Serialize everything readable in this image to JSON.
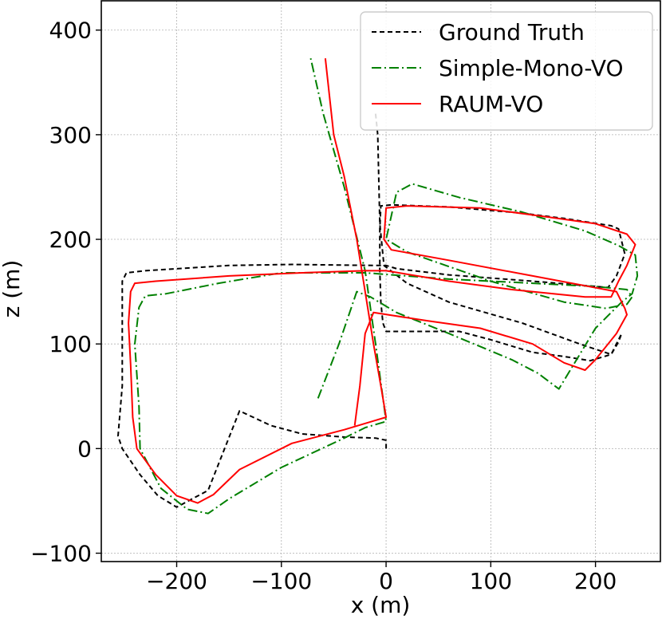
{
  "chart_data": {
    "type": "line",
    "title": "",
    "xlabel": "x (m)",
    "ylabel": "z (m)",
    "xlim": [
      -272,
      262
    ],
    "ylim": [
      -108,
      428
    ],
    "xticks": [
      -200,
      -100,
      0,
      100,
      200
    ],
    "yticks": [
      -100,
      0,
      100,
      200,
      300,
      400
    ],
    "grid": true,
    "legend_position": "top-right",
    "series": [
      {
        "name": "Ground Truth",
        "color": "#000000",
        "style": "dashed",
        "points": [
          [
            0,
            0
          ],
          [
            0,
            8
          ],
          [
            -10,
            10
          ],
          [
            -40,
            11
          ],
          [
            -80,
            14
          ],
          [
            -110,
            22
          ],
          [
            -140,
            36
          ],
          [
            -170,
            -40
          ],
          [
            -200,
            -56
          ],
          [
            -218,
            -45
          ],
          [
            -235,
            -25
          ],
          [
            -252,
            0
          ],
          [
            -256,
            12
          ],
          [
            -252,
            60
          ],
          [
            -252,
            100
          ],
          [
            -252,
            160
          ],
          [
            -248,
            168
          ],
          [
            -230,
            170
          ],
          [
            -150,
            175
          ],
          [
            -90,
            176
          ],
          [
            -10,
            175
          ],
          [
            0,
            175
          ],
          [
            10,
            172
          ],
          [
            60,
            166
          ],
          [
            140,
            160
          ],
          [
            200,
            155
          ],
          [
            212,
            154
          ],
          [
            220,
            165
          ],
          [
            228,
            186
          ],
          [
            222,
            210
          ],
          [
            215,
            213
          ],
          [
            170,
            220
          ],
          [
            130,
            225
          ],
          [
            60,
            231
          ],
          [
            5,
            233
          ],
          [
            -5,
            232
          ],
          [
            -6,
            210
          ],
          [
            -6,
            170
          ],
          [
            -5,
            140
          ],
          [
            -3,
            120
          ],
          [
            0,
            112
          ],
          [
            20,
            112
          ],
          [
            70,
            112
          ],
          [
            100,
            104
          ],
          [
            140,
            92
          ],
          [
            170,
            88
          ],
          [
            195,
            84
          ],
          [
            215,
            90
          ],
          [
            222,
            102
          ],
          [
            225,
            110
          ],
          [
            215,
            90
          ],
          [
            185,
            100
          ],
          [
            130,
            120
          ],
          [
            60,
            140
          ],
          [
            20,
            158
          ],
          [
            -2,
            175
          ],
          [
            -6,
            215
          ],
          [
            -8,
            300
          ],
          [
            -10,
            320
          ]
        ]
      },
      {
        "name": "Simple-Mono-VO",
        "color": "#008000",
        "style": "dashdot",
        "points": [
          [
            -65,
            48
          ],
          [
            -45,
            100
          ],
          [
            -28,
            150
          ],
          [
            -15,
            145
          ],
          [
            10,
            130
          ],
          [
            60,
            110
          ],
          [
            120,
            85
          ],
          [
            145,
            72
          ],
          [
            165,
            57
          ],
          [
            185,
            90
          ],
          [
            200,
            115
          ],
          [
            225,
            140
          ],
          [
            235,
            148
          ],
          [
            240,
            165
          ],
          [
            238,
            185
          ],
          [
            222,
            194
          ],
          [
            190,
            208
          ],
          [
            130,
            226
          ],
          [
            70,
            240
          ],
          [
            25,
            253
          ],
          [
            10,
            245
          ],
          [
            0,
            200
          ],
          [
            20,
            188
          ],
          [
            100,
            160
          ],
          [
            170,
            140
          ],
          [
            210,
            134
          ],
          [
            230,
            138
          ],
          [
            235,
            145
          ],
          [
            230,
            152
          ],
          [
            200,
            155
          ],
          [
            140,
            158
          ],
          [
            60,
            162
          ],
          [
            -20,
            168
          ],
          [
            -100,
            168
          ],
          [
            -160,
            158
          ],
          [
            -210,
            148
          ],
          [
            -230,
            146
          ],
          [
            -236,
            135
          ],
          [
            -240,
            100
          ],
          [
            -236,
            40
          ],
          [
            -235,
            0
          ],
          [
            -215,
            -38
          ],
          [
            -190,
            -58
          ],
          [
            -170,
            -62
          ],
          [
            -150,
            -48
          ],
          [
            -100,
            -18
          ],
          [
            -40,
            10
          ],
          [
            -20,
            20
          ],
          [
            0,
            26
          ],
          [
            -10,
            100
          ],
          [
            -20,
            170
          ],
          [
            -40,
            250
          ],
          [
            -60,
            320
          ],
          [
            -72,
            373
          ]
        ]
      },
      {
        "name": "RAUM-VO",
        "color": "#ff0000",
        "style": "solid",
        "points": [
          [
            -58,
            373
          ],
          [
            -50,
            300
          ],
          [
            -40,
            260
          ],
          [
            -28,
            200
          ],
          [
            -20,
            150
          ],
          [
            -12,
            100
          ],
          [
            -5,
            60
          ],
          [
            0,
            30
          ],
          [
            -10,
            27
          ],
          [
            -40,
            18
          ],
          [
            -90,
            5
          ],
          [
            -140,
            -20
          ],
          [
            -165,
            -44
          ],
          [
            -180,
            -52
          ],
          [
            -200,
            -45
          ],
          [
            -220,
            -25
          ],
          [
            -238,
            0
          ],
          [
            -242,
            30
          ],
          [
            -244,
            80
          ],
          [
            -246,
            120
          ],
          [
            -244,
            150
          ],
          [
            -240,
            158
          ],
          [
            -220,
            160
          ],
          [
            -150,
            165
          ],
          [
            -80,
            168
          ],
          [
            -20,
            170
          ],
          [
            0,
            170
          ],
          [
            60,
            160
          ],
          [
            120,
            152
          ],
          [
            190,
            145
          ],
          [
            215,
            145
          ],
          [
            222,
            160
          ],
          [
            230,
            175
          ],
          [
            238,
            195
          ],
          [
            230,
            205
          ],
          [
            200,
            215
          ],
          [
            150,
            222
          ],
          [
            90,
            230
          ],
          [
            20,
            232
          ],
          [
            0,
            230
          ],
          [
            -2,
            200
          ],
          [
            5,
            190
          ],
          [
            60,
            180
          ],
          [
            140,
            165
          ],
          [
            220,
            150
          ],
          [
            228,
            134
          ],
          [
            230,
            128
          ],
          [
            220,
            110
          ],
          [
            200,
            85
          ],
          [
            190,
            75
          ],
          [
            170,
            82
          ],
          [
            140,
            100
          ],
          [
            90,
            115
          ],
          [
            40,
            122
          ],
          [
            -12,
            130
          ],
          [
            -20,
            110
          ],
          [
            -25,
            60
          ],
          [
            -30,
            22
          ]
        ]
      }
    ]
  }
}
